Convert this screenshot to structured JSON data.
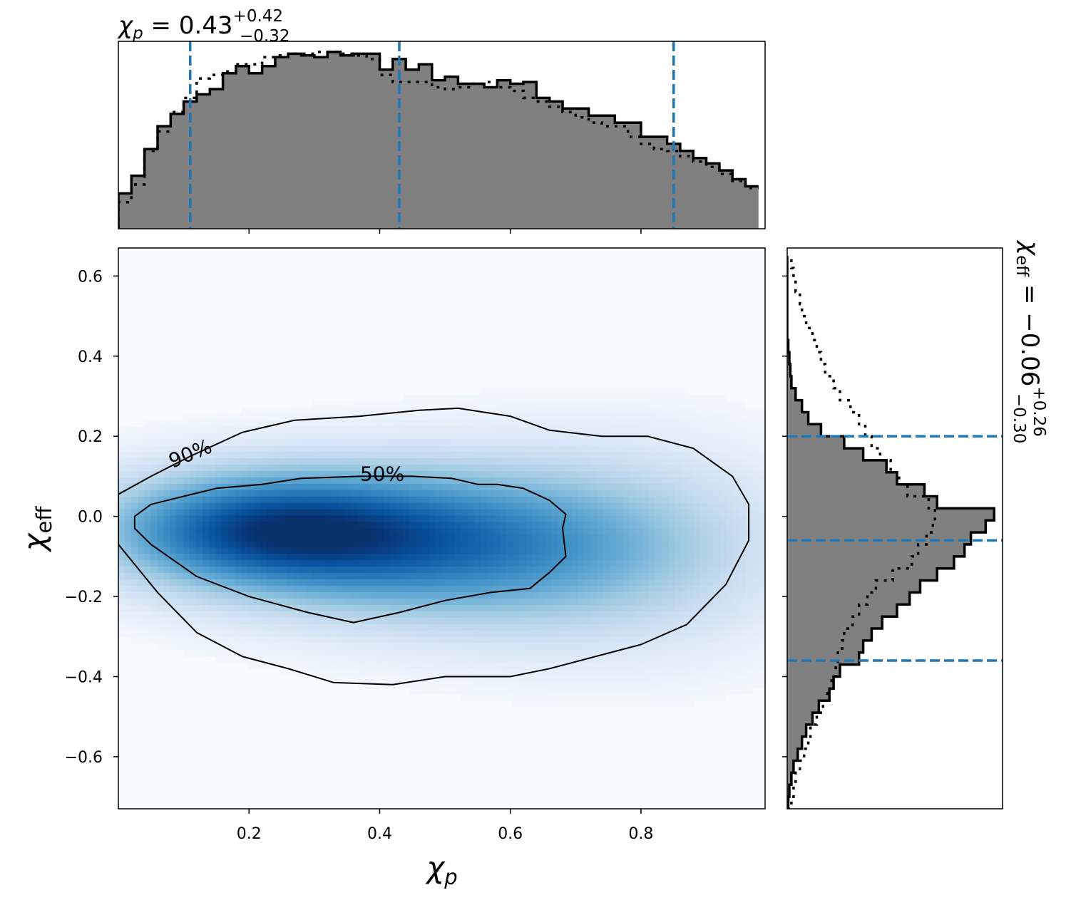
{
  "chart_data": [
    {
      "type": "heatmap",
      "subtype": "2d-density-with-contours",
      "colormap": "Blues",
      "xlabel": "χ_p",
      "ylabel": "χ_eff",
      "xlim": [
        0.0,
        0.99
      ],
      "ylim": [
        -0.73,
        0.67
      ],
      "x_ticks": [
        0.2,
        0.4,
        0.6,
        0.8
      ],
      "x_tick_labels": [
        "0.2",
        "0.4",
        "0.6",
        "0.8"
      ],
      "y_ticks": [
        0.6,
        0.4,
        0.2,
        0.0,
        -0.2,
        -0.4,
        -0.6
      ],
      "y_tick_labels": [
        "0.6",
        "0.4",
        "0.2",
        "0.0",
        "−0.2",
        "−0.4",
        "−0.6"
      ],
      "density_peak": {
        "x": 0.22,
        "y": -0.035
      },
      "contours": [
        {
          "label": "50%",
          "label_at": [
            0.37,
            0.1
          ],
          "points": [
            [
              0.025,
              0.0
            ],
            [
              0.05,
              0.03
            ],
            [
              0.1,
              0.05
            ],
            [
              0.15,
              0.07
            ],
            [
              0.22,
              0.08
            ],
            [
              0.28,
              0.095
            ],
            [
              0.37,
              0.1
            ],
            [
              0.45,
              0.1
            ],
            [
              0.51,
              0.095
            ],
            [
              0.55,
              0.08
            ],
            [
              0.58,
              0.08
            ],
            [
              0.62,
              0.07
            ],
            [
              0.66,
              0.04
            ],
            [
              0.685,
              0.005
            ],
            [
              0.68,
              -0.03
            ],
            [
              0.685,
              -0.1
            ],
            [
              0.66,
              -0.14
            ],
            [
              0.63,
              -0.18
            ],
            [
              0.57,
              -0.19
            ],
            [
              0.5,
              -0.21
            ],
            [
              0.43,
              -0.24
            ],
            [
              0.36,
              -0.265
            ],
            [
              0.29,
              -0.24
            ],
            [
              0.2,
              -0.2
            ],
            [
              0.12,
              -0.15
            ],
            [
              0.05,
              -0.07
            ],
            [
              0.025,
              -0.03
            ]
          ]
        },
        {
          "label": "90%",
          "label_at": [
            0.08,
            0.13
          ],
          "points": [
            [
              0.0,
              0.055
            ],
            [
              0.05,
              0.1
            ],
            [
              0.11,
              0.15
            ],
            [
              0.19,
              0.21
            ],
            [
              0.27,
              0.24
            ],
            [
              0.37,
              0.25
            ],
            [
              0.46,
              0.265
            ],
            [
              0.52,
              0.27
            ],
            [
              0.6,
              0.25
            ],
            [
              0.66,
              0.215
            ],
            [
              0.74,
              0.2
            ],
            [
              0.81,
              0.2
            ],
            [
              0.88,
              0.17
            ],
            [
              0.94,
              0.1
            ],
            [
              0.965,
              0.03
            ],
            [
              0.965,
              -0.06
            ],
            [
              0.93,
              -0.17
            ],
            [
              0.87,
              -0.27
            ],
            [
              0.8,
              -0.32
            ],
            [
              0.73,
              -0.35
            ],
            [
              0.66,
              -0.38
            ],
            [
              0.6,
              -0.4
            ],
            [
              0.5,
              -0.4
            ],
            [
              0.42,
              -0.42
            ],
            [
              0.33,
              -0.415
            ],
            [
              0.26,
              -0.38
            ],
            [
              0.19,
              -0.35
            ],
            [
              0.12,
              -0.29
            ],
            [
              0.06,
              -0.19
            ],
            [
              0.0,
              -0.07
            ]
          ]
        }
      ]
    },
    {
      "type": "histogram",
      "orientation": "vertical",
      "title": "χ_p = 0.43^{+0.42}_{−0.32}",
      "xlim": [
        0.0,
        0.99
      ],
      "x_ticks": [
        0.2,
        0.4,
        0.6,
        0.8
      ],
      "bin_edges": [
        0.0,
        0.02,
        0.04,
        0.06,
        0.08,
        0.1,
        0.12,
        0.14,
        0.16,
        0.18,
        0.2,
        0.22,
        0.24,
        0.26,
        0.28,
        0.3,
        0.32,
        0.34,
        0.36,
        0.38,
        0.4,
        0.42,
        0.44,
        0.46,
        0.48,
        0.5,
        0.52,
        0.54,
        0.56,
        0.58,
        0.6,
        0.62,
        0.64,
        0.66,
        0.68,
        0.7,
        0.72,
        0.74,
        0.76,
        0.78,
        0.8,
        0.82,
        0.84,
        0.86,
        0.88,
        0.9,
        0.92,
        0.94,
        0.96,
        0.98
      ],
      "series": [
        {
          "style": "filled-step",
          "values": [
            0.2,
            0.3,
            0.45,
            0.58,
            0.65,
            0.72,
            0.76,
            0.79,
            0.88,
            0.92,
            0.88,
            0.92,
            0.97,
            0.99,
            0.98,
            0.97,
            1.0,
            0.98,
            0.99,
            0.99,
            0.9,
            0.96,
            0.9,
            0.93,
            0.84,
            0.86,
            0.82,
            0.82,
            0.8,
            0.84,
            0.82,
            0.83,
            0.74,
            0.72,
            0.68,
            0.68,
            0.64,
            0.64,
            0.6,
            0.6,
            0.52,
            0.52,
            0.48,
            0.44,
            0.4,
            0.37,
            0.33,
            0.28,
            0.24
          ]
        },
        {
          "style": "dotted-step",
          "values": [
            0.15,
            0.25,
            0.44,
            0.55,
            0.66,
            0.74,
            0.85,
            0.87,
            0.89,
            0.93,
            0.93,
            0.97,
            0.98,
            0.99,
            0.99,
            1.0,
            1.0,
            0.99,
            0.98,
            0.96,
            0.87,
            0.83,
            0.83,
            0.83,
            0.8,
            0.79,
            0.8,
            0.82,
            0.83,
            0.8,
            0.78,
            0.74,
            0.72,
            0.69,
            0.66,
            0.63,
            0.6,
            0.58,
            0.58,
            0.52,
            0.48,
            0.45,
            0.44,
            0.41,
            0.38,
            0.35,
            0.31,
            0.27,
            0.23
          ]
        }
      ],
      "quantile_lines": [
        0.11,
        0.43,
        0.85
      ],
      "quantile_color": "#1f77b4",
      "fill_color": "#808080"
    },
    {
      "type": "histogram",
      "orientation": "horizontal",
      "title": "χ_eff = −0.06^{+0.26}_{−0.30}",
      "ylim": [
        -0.73,
        0.67
      ],
      "bin_edges": [
        -0.73,
        -0.7,
        -0.67,
        -0.64,
        -0.61,
        -0.58,
        -0.55,
        -0.52,
        -0.49,
        -0.46,
        -0.43,
        -0.4,
        -0.37,
        -0.34,
        -0.31,
        -0.28,
        -0.25,
        -0.22,
        -0.19,
        -0.16,
        -0.13,
        -0.1,
        -0.07,
        -0.04,
        -0.01,
        0.02,
        0.05,
        0.08,
        0.11,
        0.14,
        0.17,
        0.2,
        0.23,
        0.26,
        0.29,
        0.32,
        0.35,
        0.38,
        0.41,
        0.44,
        0.47,
        0.5,
        0.53,
        0.56,
        0.59,
        0.62,
        0.65
      ],
      "series": [
        {
          "style": "filled-step",
          "values": [
            0.005,
            0.01,
            0.02,
            0.03,
            0.05,
            0.07,
            0.09,
            0.12,
            0.15,
            0.2,
            0.22,
            0.25,
            0.34,
            0.36,
            0.4,
            0.45,
            0.52,
            0.58,
            0.63,
            0.71,
            0.79,
            0.84,
            0.87,
            0.94,
            0.98,
            0.71,
            0.65,
            0.52,
            0.47,
            0.36,
            0.27,
            0.16,
            0.1,
            0.07,
            0.04,
            0.02,
            0.015,
            0.01,
            0.005,
            0.0,
            0.0,
            0.0,
            0.0,
            0.0,
            0.0,
            0.0
          ]
        },
        {
          "style": "dotted-step",
          "values": [
            0.02,
            0.03,
            0.04,
            0.06,
            0.08,
            0.1,
            0.11,
            0.14,
            0.17,
            0.19,
            0.21,
            0.23,
            0.24,
            0.26,
            0.27,
            0.31,
            0.34,
            0.38,
            0.42,
            0.5,
            0.59,
            0.62,
            0.66,
            0.69,
            0.7,
            0.67,
            0.57,
            0.53,
            0.49,
            0.44,
            0.4,
            0.37,
            0.34,
            0.3,
            0.25,
            0.22,
            0.18,
            0.16,
            0.14,
            0.12,
            0.09,
            0.07,
            0.06,
            0.04,
            0.03,
            0.02
          ]
        }
      ],
      "quantile_lines": [
        -0.36,
        -0.06,
        0.2
      ],
      "quantile_color": "#1f77b4",
      "fill_color": "#808080"
    }
  ]
}
